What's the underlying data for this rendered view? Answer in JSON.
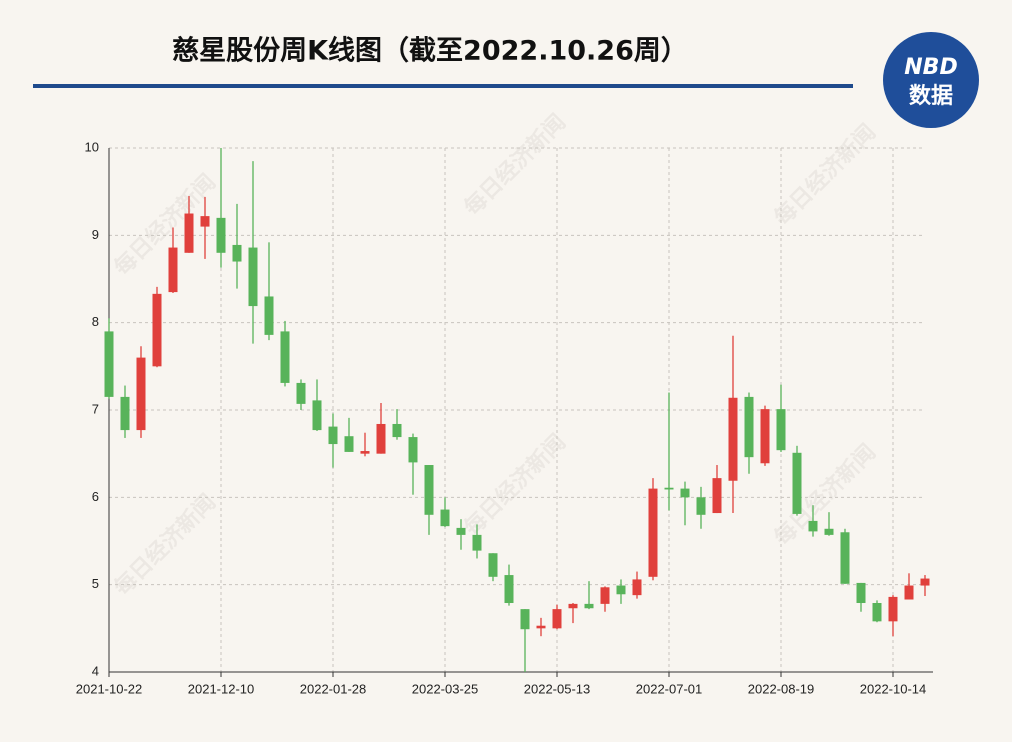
{
  "header": {
    "title": "慈星股份周K线图（截至2022.10.26周）",
    "logo_top": "NBD",
    "logo_bottom": "数据",
    "watermark": "每日经济新闻"
  },
  "chart_data": {
    "type": "candlestick",
    "categories": [
      "2021-10-22",
      null,
      null,
      null,
      null,
      null,
      null,
      "2021-12-10",
      null,
      null,
      null,
      null,
      null,
      null,
      "2022-01-28",
      null,
      null,
      null,
      null,
      null,
      null,
      "2022-03-25",
      null,
      null,
      null,
      null,
      null,
      null,
      "2022-05-13",
      null,
      null,
      null,
      null,
      null,
      null,
      "2022-07-01",
      null,
      null,
      null,
      null,
      null,
      null,
      "2022-08-19",
      null,
      null,
      null,
      null,
      null,
      null,
      "2022-10-14",
      null,
      null
    ],
    "open": [
      7.9,
      7.15,
      6.77,
      7.5,
      8.35,
      8.8,
      9.1,
      9.2,
      8.89,
      8.86,
      8.3,
      7.9,
      7.31,
      7.11,
      6.81,
      6.7,
      6.5,
      6.5,
      6.84,
      6.69,
      6.37,
      5.86,
      5.65,
      5.57,
      5.36,
      5.11,
      4.72,
      4.5,
      4.5,
      4.73,
      4.78,
      4.78,
      4.99,
      4.88,
      5.09,
      6.11,
      6.1,
      6.0,
      5.82,
      6.19,
      7.15,
      6.39,
      7.01,
      6.51,
      5.73,
      5.64,
      5.6,
      5.02,
      4.79,
      4.58,
      4.83,
      4.99
    ],
    "high": [
      8.05,
      7.28,
      7.73,
      8.41,
      9.09,
      9.45,
      9.44,
      10.0,
      9.36,
      9.85,
      8.92,
      8.02,
      7.35,
      7.35,
      6.96,
      6.91,
      6.74,
      7.08,
      7.01,
      6.73,
      6.37,
      6.0,
      5.75,
      5.69,
      5.36,
      5.23,
      4.72,
      4.62,
      4.77,
      4.79,
      5.04,
      4.98,
      5.06,
      5.15,
      6.22,
      7.2,
      6.18,
      6.12,
      6.37,
      7.85,
      7.2,
      7.05,
      7.29,
      6.59,
      5.91,
      5.83,
      5.64,
      5.02,
      4.82,
      4.88,
      5.13,
      5.11
    ],
    "low": [
      7.13,
      6.68,
      6.68,
      7.49,
      8.34,
      8.8,
      8.73,
      8.63,
      8.39,
      7.76,
      7.8,
      7.27,
      7.0,
      6.76,
      6.34,
      6.52,
      6.47,
      6.5,
      6.66,
      6.03,
      5.57,
      5.66,
      5.4,
      5.3,
      5.04,
      4.76,
      4.0,
      4.41,
      4.49,
      4.56,
      4.72,
      4.69,
      4.78,
      4.84,
      5.05,
      5.85,
      5.68,
      5.64,
      5.82,
      5.82,
      6.27,
      6.36,
      6.52,
      5.79,
      5.55,
      5.56,
      5.01,
      4.69,
      4.57,
      4.41,
      4.83,
      4.87
    ],
    "close": [
      7.15,
      6.77,
      7.6,
      8.33,
      8.86,
      9.25,
      9.22,
      8.8,
      8.7,
      8.19,
      7.86,
      7.31,
      7.07,
      6.77,
      6.61,
      6.52,
      6.53,
      6.84,
      6.69,
      6.4,
      5.8,
      5.67,
      5.57,
      5.39,
      5.09,
      4.79,
      4.49,
      4.53,
      4.72,
      4.78,
      4.73,
      4.97,
      4.89,
      5.06,
      6.1,
      6.09,
      6.0,
      5.8,
      6.22,
      7.14,
      6.46,
      7.01,
      6.54,
      5.81,
      5.61,
      5.57,
      5.01,
      4.79,
      4.58,
      4.86,
      4.99,
      5.07
    ],
    "up_color": "#e0403c",
    "down_color": "#58b35a",
    "ylim": [
      4,
      10
    ],
    "yticks": [
      4,
      5,
      6,
      7,
      8,
      9,
      10
    ],
    "grid": true
  }
}
